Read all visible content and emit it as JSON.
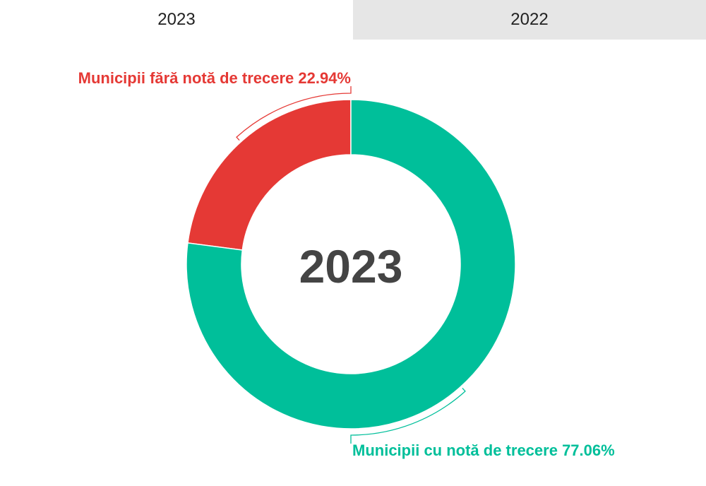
{
  "tabs": [
    {
      "label": "2023",
      "active": true
    },
    {
      "label": "2022",
      "active": false
    }
  ],
  "chart_data": {
    "type": "pie",
    "variant": "donut",
    "center_label": "2023",
    "slices": [
      {
        "label": "Municipii fără notă de trecere",
        "value": 22.94,
        "display": "Municipii fără notă de trecere 22.94%",
        "color": "#e53935"
      },
      {
        "label": "Municipii cu notă de trecere",
        "value": 77.06,
        "display": "Municipii cu notă de trecere 77.06%",
        "color": "#00bf9a"
      }
    ]
  }
}
